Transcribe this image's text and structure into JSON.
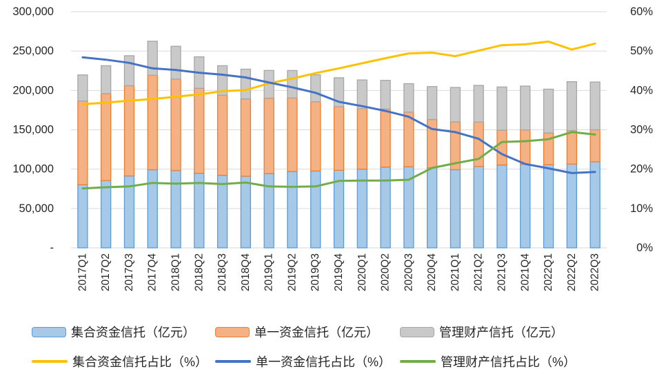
{
  "chart_data": {
    "type": "combo-stacked-bar-line",
    "categories": [
      "2017Q1",
      "2017Q2",
      "2017Q3",
      "2017Q4",
      "2018Q1",
      "2018Q2",
      "2018Q3",
      "2018Q4",
      "2019Q1",
      "2019Q2",
      "2019Q3",
      "2019Q4",
      "2020Q1",
      "2020Q2",
      "2020Q3",
      "2020Q4",
      "2021Q1",
      "2021Q2",
      "2021Q3",
      "2021Q4",
      "2022Q1",
      "2022Q2",
      "2022Q3"
    ],
    "left_axis": {
      "ticks": [
        "300,000",
        "250,000",
        "200,000",
        "150,000",
        "100,000",
        "50,000",
        "-"
      ],
      "min": 0,
      "max": 300000
    },
    "right_axis": {
      "ticks": [
        "60%",
        "50%",
        "40%",
        "30%",
        "20%",
        "10%",
        "0%"
      ],
      "min": 0,
      "max": 60
    },
    "grid_color": "#D9D9D9",
    "bar_series": [
      {
        "name": "集合资金信托（亿元）",
        "fill": "#A6C9E8",
        "border": "#5B9BD5",
        "values": [
          80200,
          85400,
          91300,
          99200,
          98300,
          94700,
          92100,
          91000,
          94200,
          96900,
          97600,
          98500,
          100000,
          102600,
          103000,
          101600,
          99300,
          103400,
          105300,
          106200,
          105600,
          106400,
          109400
        ]
      },
      {
        "name": "单一资金信托（亿元）",
        "fill": "#F4B183",
        "border": "#ED7D31",
        "values": [
          106300,
          110400,
          114700,
          120000,
          116100,
          108000,
          101800,
          98300,
          96000,
          93500,
          88000,
          80900,
          76800,
          73800,
          69500,
          61500,
          60700,
          56400,
          44100,
          43600,
          40400,
          42600,
          40600
        ]
      },
      {
        "name": "管理财产信托（亿元）",
        "fill": "#C9C9C9",
        "border": "#A6A6A6",
        "values": [
          33200,
          35600,
          38100,
          43300,
          41700,
          40000,
          37500,
          37700,
          35200,
          34900,
          34300,
          36700,
          36500,
          36400,
          36100,
          41800,
          43800,
          46600,
          55000,
          55700,
          55600,
          62100,
          60700
        ]
      }
    ],
    "line_series": [
      {
        "name": "集合资金信托占比（%）",
        "color": "#FFC000",
        "values": [
          36.5,
          36.9,
          37.4,
          37.8,
          38.4,
          39.0,
          39.8,
          40.1,
          41.8,
          43.0,
          44.4,
          45.6,
          46.9,
          48.2,
          49.4,
          49.6,
          48.7,
          50.1,
          51.5,
          51.7,
          52.4,
          50.4,
          51.9
        ]
      },
      {
        "name": "单一资金信托占比（%）",
        "color": "#4472C4",
        "values": [
          48.4,
          47.8,
          47.0,
          45.6,
          45.2,
          44.5,
          44.0,
          43.3,
          42.0,
          40.8,
          39.4,
          37.1,
          36.0,
          34.8,
          33.3,
          30.2,
          29.4,
          27.7,
          23.8,
          21.3,
          20.2,
          19.0,
          19.3
        ]
      },
      {
        "name": "管理财产信托占比（%）",
        "color": "#70AD47",
        "values": [
          15.1,
          15.4,
          15.6,
          16.5,
          16.3,
          16.5,
          16.2,
          16.6,
          15.6,
          15.5,
          15.6,
          17.0,
          17.1,
          17.1,
          17.3,
          20.3,
          21.5,
          22.6,
          26.9,
          27.1,
          27.6,
          29.4,
          28.8
        ]
      }
    ]
  }
}
